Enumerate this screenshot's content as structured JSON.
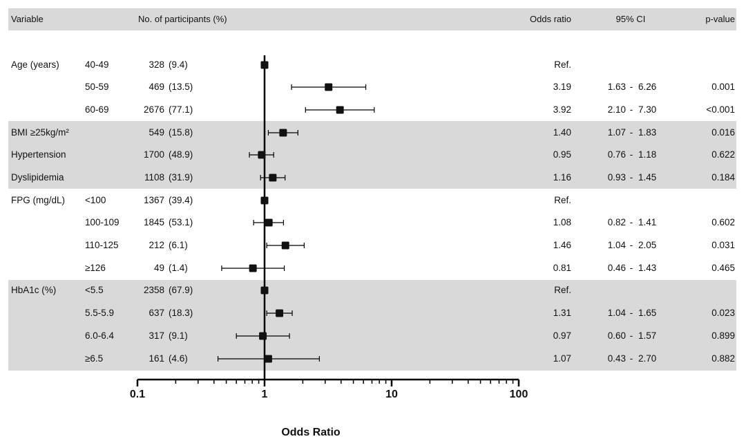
{
  "header": {
    "variable": "Variable",
    "participants": "No. of participants (%)",
    "odds_ratio": "Odds ratio",
    "ci": "95% CI",
    "pvalue": "p-value"
  },
  "ci_separator": "-",
  "chart_data": {
    "type": "forest",
    "xlabel": "Odds Ratio",
    "xscale": "log",
    "xlim": [
      0.1,
      100
    ],
    "xticks": [
      "0.1",
      "1",
      "10",
      "100"
    ],
    "reference_line": 1,
    "rows": [
      {
        "group": "Age (years)",
        "level": "40-49",
        "n": "328",
        "pct": "(9.4)",
        "or": 1.0,
        "lo": 1.0,
        "hi": 1.0,
        "or_text": "Ref.",
        "lo_text": "",
        "hi_text": "",
        "p": "",
        "shaded": false
      },
      {
        "group": "",
        "level": "50-59",
        "n": "469",
        "pct": "(13.5)",
        "or": 3.19,
        "lo": 1.63,
        "hi": 6.26,
        "or_text": "3.19",
        "lo_text": "1.63",
        "hi_text": "6.26",
        "p": "0.001",
        "shaded": false
      },
      {
        "group": "",
        "level": "60-69",
        "n": "2676",
        "pct": "(77.1)",
        "or": 3.92,
        "lo": 2.1,
        "hi": 7.3,
        "or_text": "3.92",
        "lo_text": "2.10",
        "hi_text": "7.30",
        "p": "<0.001",
        "shaded": false
      },
      {
        "group": "BMI ≥25kg/m²",
        "level": "",
        "n": "549",
        "pct": "(15.8)",
        "or": 1.4,
        "lo": 1.07,
        "hi": 1.83,
        "or_text": "1.40",
        "lo_text": "1.07",
        "hi_text": "1.83",
        "p": "0.016",
        "shaded": true
      },
      {
        "group": "Hypertension",
        "level": "",
        "n": "1700",
        "pct": "(48.9)",
        "or": 0.95,
        "lo": 0.76,
        "hi": 1.18,
        "or_text": "0.95",
        "lo_text": "0.76",
        "hi_text": "1.18",
        "p": "0.622",
        "shaded": true
      },
      {
        "group": "Dyslipidemia",
        "level": "",
        "n": "1108",
        "pct": "(31.9)",
        "or": 1.16,
        "lo": 0.93,
        "hi": 1.45,
        "or_text": "1.16",
        "lo_text": "0.93",
        "hi_text": "1.45",
        "p": "0.184",
        "shaded": true
      },
      {
        "group": "FPG (mg/dL)",
        "level": "<100",
        "n": "1367",
        "pct": "(39.4)",
        "or": 1.0,
        "lo": 1.0,
        "hi": 1.0,
        "or_text": "Ref.",
        "lo_text": "",
        "hi_text": "",
        "p": "",
        "shaded": false
      },
      {
        "group": "",
        "level": "100-109",
        "n": "1845",
        "pct": "(53.1)",
        "or": 1.08,
        "lo": 0.82,
        "hi": 1.41,
        "or_text": "1.08",
        "lo_text": "0.82",
        "hi_text": "1.41",
        "p": "0.602",
        "shaded": false
      },
      {
        "group": "",
        "level": "110-125",
        "n": "212",
        "pct": "(6.1)",
        "or": 1.46,
        "lo": 1.04,
        "hi": 2.05,
        "or_text": "1.46",
        "lo_text": "1.04",
        "hi_text": "2.05",
        "p": "0.031",
        "shaded": false
      },
      {
        "group": "",
        "level": "≥126",
        "n": "49",
        "pct": "(1.4)",
        "or": 0.81,
        "lo": 0.46,
        "hi": 1.43,
        "or_text": "0.81",
        "lo_text": "0.46",
        "hi_text": "1.43",
        "p": "0.465",
        "shaded": false
      },
      {
        "group": "HbA1c (%)",
        "level": "<5.5",
        "n": "2358",
        "pct": "(67.9)",
        "or": 1.0,
        "lo": 1.0,
        "hi": 1.0,
        "or_text": "Ref.",
        "lo_text": "",
        "hi_text": "",
        "p": "",
        "shaded": true
      },
      {
        "group": "",
        "level": "5.5-5.9",
        "n": "637",
        "pct": "(18.3)",
        "or": 1.31,
        "lo": 1.04,
        "hi": 1.65,
        "or_text": "1.31",
        "lo_text": "1.04",
        "hi_text": "1.65",
        "p": "0.023",
        "shaded": true
      },
      {
        "group": "",
        "level": "6.0-6.4",
        "n": "317",
        "pct": "(9.1)",
        "or": 0.97,
        "lo": 0.6,
        "hi": 1.57,
        "or_text": "0.97",
        "lo_text": "0.60",
        "hi_text": "1.57",
        "p": "0.899",
        "shaded": true
      },
      {
        "group": "",
        "level": "≥6.5",
        "n": "161",
        "pct": "(4.6)",
        "or": 1.07,
        "lo": 0.43,
        "hi": 2.7,
        "or_text": "1.07",
        "lo_text": "0.43",
        "hi_text": "2.70",
        "p": "0.882",
        "shaded": true
      }
    ]
  }
}
